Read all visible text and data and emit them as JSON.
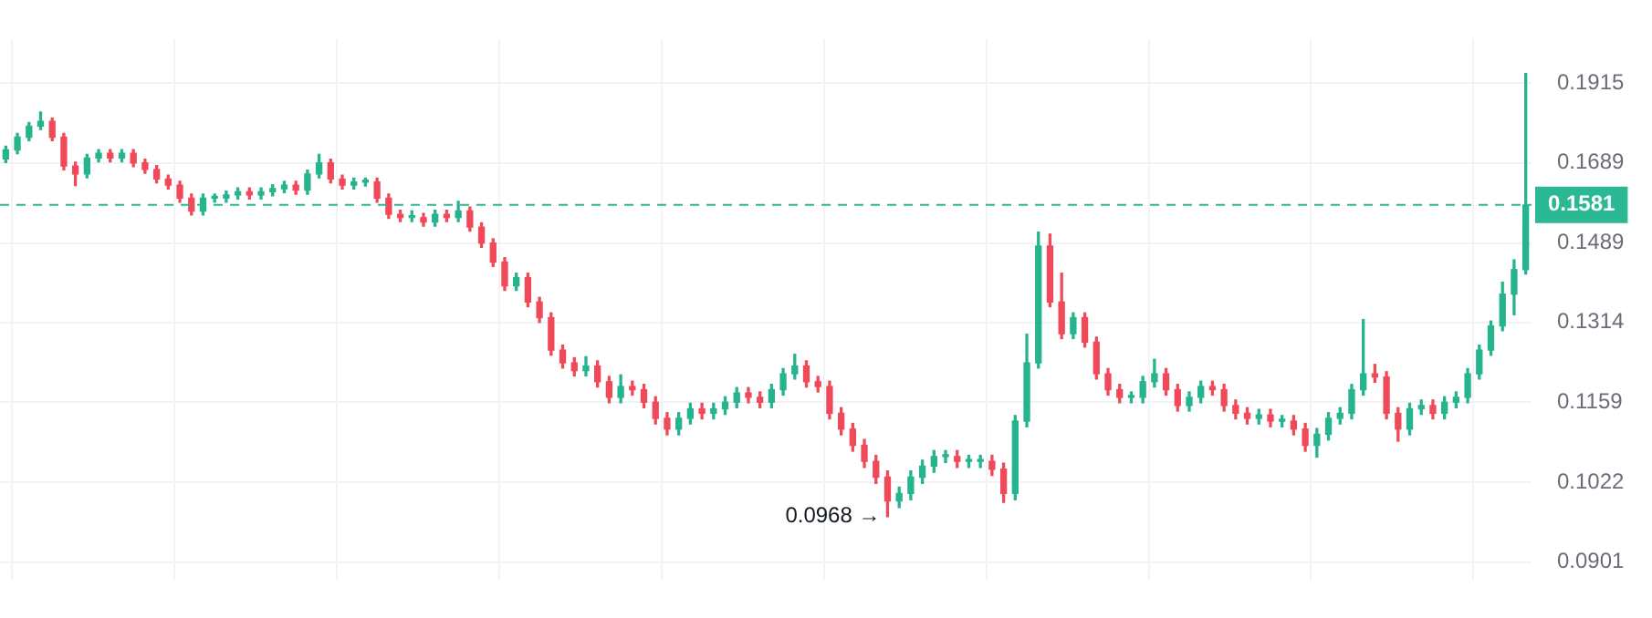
{
  "chart_data": {
    "type": "candlestick",
    "categories": [
      null,
      null,
      null,
      null,
      null,
      null,
      null,
      null,
      null,
      null,
      null,
      null,
      null,
      null,
      null,
      null,
      null,
      null,
      null,
      null,
      null,
      null,
      null,
      null,
      null,
      null,
      null,
      null,
      null,
      null,
      null,
      null,
      null,
      null,
      null,
      null,
      null,
      null,
      null,
      null,
      null,
      null,
      null,
      null,
      null,
      null,
      null,
      null,
      null,
      null,
      null,
      null,
      null,
      null,
      null,
      null,
      null,
      null,
      null,
      null,
      null,
      null,
      null,
      null,
      null,
      null,
      null,
      null,
      null,
      null,
      null,
      null,
      null,
      null,
      null,
      null,
      null,
      null,
      null,
      null,
      null,
      null,
      null,
      null,
      null,
      null,
      null,
      null,
      null,
      null,
      null,
      null,
      null,
      null,
      null,
      null,
      null,
      null,
      null,
      null,
      null,
      null,
      null,
      null,
      null,
      null,
      null,
      null,
      null,
      null,
      null,
      null,
      null,
      null,
      null,
      null,
      null,
      null,
      null,
      null,
      null,
      null,
      null,
      null,
      null,
      null,
      null,
      null,
      null,
      null,
      null,
      null
    ],
    "ohlc": [
      [
        0.17,
        0.1734,
        0.169,
        0.1724
      ],
      [
        0.1724,
        0.1769,
        0.1714,
        0.1759
      ],
      [
        0.1759,
        0.18,
        0.1749,
        0.179
      ],
      [
        0.179,
        0.183,
        0.178,
        0.1803
      ],
      [
        0.1803,
        0.1813,
        0.1749,
        0.1759
      ],
      [
        0.1759,
        0.1769,
        0.1671,
        0.1681
      ],
      [
        0.1681,
        0.1691,
        0.163,
        0.166
      ],
      [
        0.166,
        0.1712,
        0.165,
        0.1702
      ],
      [
        0.1702,
        0.1725,
        0.1692,
        0.1715
      ],
      [
        0.1715,
        0.1725,
        0.1692,
        0.1702
      ],
      [
        0.1702,
        0.1725,
        0.1692,
        0.1715
      ],
      [
        0.1715,
        0.1725,
        0.1679,
        0.1689
      ],
      [
        0.1689,
        0.1699,
        0.1662,
        0.1672
      ],
      [
        0.1672,
        0.1682,
        0.1637,
        0.1647
      ],
      [
        0.1647,
        0.1657,
        0.1621,
        0.1631
      ],
      [
        0.1631,
        0.1641,
        0.1588,
        0.1598
      ],
      [
        0.1598,
        0.1608,
        0.1556,
        0.1566
      ],
      [
        0.1566,
        0.1608,
        0.1556,
        0.1598
      ],
      [
        0.1598,
        0.1608,
        0.1588,
        0.1598
      ],
      [
        0.1598,
        0.1616,
        0.1588,
        0.1606
      ],
      [
        0.1606,
        0.1624,
        0.1596,
        0.1614
      ],
      [
        0.1614,
        0.1624,
        0.1596,
        0.1606
      ],
      [
        0.1606,
        0.1624,
        0.1596,
        0.1614
      ],
      [
        0.1614,
        0.1632,
        0.1604,
        0.1622
      ],
      [
        0.1622,
        0.1641,
        0.1612,
        0.1631
      ],
      [
        0.1631,
        0.1641,
        0.1608,
        0.1618
      ],
      [
        0.1618,
        0.167,
        0.1608,
        0.166
      ],
      [
        0.166,
        0.1712,
        0.165,
        0.1689
      ],
      [
        0.1689,
        0.1699,
        0.1637,
        0.1647
      ],
      [
        0.1647,
        0.1657,
        0.1621,
        0.1631
      ],
      [
        0.1631,
        0.1649,
        0.1621,
        0.1639
      ],
      [
        0.1639,
        0.1649,
        0.1629,
        0.1639
      ],
      [
        0.1639,
        0.1649,
        0.1588,
        0.1598
      ],
      [
        0.1598,
        0.1608,
        0.1548,
        0.1558
      ],
      [
        0.1558,
        0.1568,
        0.154,
        0.155
      ],
      [
        0.155,
        0.1566,
        0.154,
        0.155
      ],
      [
        0.155,
        0.156,
        0.1529,
        0.1539
      ],
      [
        0.1539,
        0.1568,
        0.1529,
        0.1558
      ],
      [
        0.1558,
        0.1568,
        0.154,
        0.155
      ],
      [
        0.155,
        0.159,
        0.154,
        0.1566
      ],
      [
        0.1566,
        0.1576,
        0.1517,
        0.1527
      ],
      [
        0.1527,
        0.1537,
        0.1479,
        0.1489
      ],
      [
        0.1489,
        0.1499,
        0.1435,
        0.1445
      ],
      [
        0.1445,
        0.1455,
        0.1382,
        0.1392
      ],
      [
        0.1392,
        0.142,
        0.1382,
        0.141
      ],
      [
        0.141,
        0.142,
        0.1347,
        0.1357
      ],
      [
        0.1357,
        0.1367,
        0.1314,
        0.1324
      ],
      [
        0.1324,
        0.1334,
        0.1248,
        0.1258
      ],
      [
        0.1258,
        0.1268,
        0.1223,
        0.1233
      ],
      [
        0.1233,
        0.1243,
        0.1208,
        0.1218
      ],
      [
        0.1218,
        0.1245,
        0.1208,
        0.1227
      ],
      [
        0.1227,
        0.1237,
        0.1187,
        0.1197
      ],
      [
        0.1197,
        0.1207,
        0.1158,
        0.1168
      ],
      [
        0.1168,
        0.121,
        0.1158,
        0.1188
      ],
      [
        0.1188,
        0.1198,
        0.1172,
        0.1182
      ],
      [
        0.1182,
        0.1192,
        0.1149,
        0.1159
      ],
      [
        0.1159,
        0.1169,
        0.112,
        0.113
      ],
      [
        0.113,
        0.114,
        0.1101,
        0.1111
      ],
      [
        0.1111,
        0.114,
        0.1101,
        0.113
      ],
      [
        0.113,
        0.1157,
        0.112,
        0.1147
      ],
      [
        0.1147,
        0.1157,
        0.1129,
        0.1139
      ],
      [
        0.1139,
        0.1157,
        0.1129,
        0.1147
      ],
      [
        0.1147,
        0.1169,
        0.1137,
        0.1159
      ],
      [
        0.1159,
        0.1186,
        0.1149,
        0.1176
      ],
      [
        0.1176,
        0.1186,
        0.1158,
        0.1168
      ],
      [
        0.1168,
        0.1178,
        0.1149,
        0.1159
      ],
      [
        0.1159,
        0.1192,
        0.1149,
        0.1182
      ],
      [
        0.1182,
        0.1222,
        0.1172,
        0.1212
      ],
      [
        0.1212,
        0.125,
        0.1202,
        0.1227
      ],
      [
        0.1227,
        0.1237,
        0.1187,
        0.1197
      ],
      [
        0.1197,
        0.1207,
        0.1178,
        0.1188
      ],
      [
        0.1188,
        0.1198,
        0.1129,
        0.1139
      ],
      [
        0.1139,
        0.1149,
        0.1101,
        0.1111
      ],
      [
        0.1111,
        0.1121,
        0.1073,
        0.1083
      ],
      [
        0.1083,
        0.1093,
        0.1046,
        0.1056
      ],
      [
        0.1056,
        0.1066,
        0.102,
        0.103
      ],
      [
        0.103,
        0.104,
        0.0968,
        0.0992
      ],
      [
        0.0992,
        0.1014,
        0.0982,
        0.1004
      ],
      [
        0.1004,
        0.104,
        0.0994,
        0.103
      ],
      [
        0.103,
        0.1058,
        0.102,
        0.1048
      ],
      [
        0.1048,
        0.1074,
        0.1038,
        0.1064
      ],
      [
        0.1064,
        0.1074,
        0.1054,
        0.1064
      ],
      [
        0.1064,
        0.1074,
        0.1046,
        0.1056
      ],
      [
        0.1056,
        0.1066,
        0.1046,
        0.1056
      ],
      [
        0.1056,
        0.1066,
        0.1046,
        0.1056
      ],
      [
        0.1056,
        0.1066,
        0.1033,
        0.1043
      ],
      [
        0.1043,
        0.1053,
        0.099,
        0.1004
      ],
      [
        0.1004,
        0.1135,
        0.0994,
        0.1125
      ],
      [
        0.1125,
        0.129,
        0.1115,
        0.1233
      ],
      [
        0.1233,
        0.1515,
        0.1223,
        0.1482
      ],
      [
        0.1482,
        0.151,
        0.1347,
        0.1357
      ],
      [
        0.1357,
        0.142,
        0.1281,
        0.1291
      ],
      [
        0.1291,
        0.1334,
        0.1281,
        0.1324
      ],
      [
        0.1324,
        0.1334,
        0.1264,
        0.1274
      ],
      [
        0.1274,
        0.1284,
        0.1202,
        0.1212
      ],
      [
        0.1212,
        0.1222,
        0.1172,
        0.1182
      ],
      [
        0.1182,
        0.1192,
        0.1158,
        0.1168
      ],
      [
        0.1168,
        0.1178,
        0.1158,
        0.1168
      ],
      [
        0.1168,
        0.1207,
        0.1158,
        0.1197
      ],
      [
        0.1197,
        0.124,
        0.1187,
        0.1212
      ],
      [
        0.1212,
        0.1222,
        0.1172,
        0.1182
      ],
      [
        0.1182,
        0.1192,
        0.1143,
        0.1153
      ],
      [
        0.1153,
        0.1178,
        0.1143,
        0.1168
      ],
      [
        0.1168,
        0.1198,
        0.1158,
        0.1188
      ],
      [
        0.1188,
        0.1198,
        0.1172,
        0.1182
      ],
      [
        0.1182,
        0.1192,
        0.1143,
        0.1153
      ],
      [
        0.1153,
        0.1163,
        0.1129,
        0.1139
      ],
      [
        0.1139,
        0.1149,
        0.112,
        0.113
      ],
      [
        0.113,
        0.1146,
        0.112,
        0.1136
      ],
      [
        0.1136,
        0.1146,
        0.1115,
        0.1125
      ],
      [
        0.1125,
        0.1135,
        0.1115,
        0.1125
      ],
      [
        0.1125,
        0.1135,
        0.1101,
        0.1111
      ],
      [
        0.1111,
        0.1121,
        0.1073,
        0.1083
      ],
      [
        0.1083,
        0.1112,
        0.1063,
        0.1102
      ],
      [
        0.1102,
        0.114,
        0.1092,
        0.113
      ],
      [
        0.113,
        0.1149,
        0.112,
        0.1139
      ],
      [
        0.1139,
        0.1192,
        0.1129,
        0.1182
      ],
      [
        0.1182,
        0.132,
        0.1172,
        0.1212
      ],
      [
        0.1212,
        0.123,
        0.1196,
        0.1206
      ],
      [
        0.1206,
        0.1216,
        0.1129,
        0.1139
      ],
      [
        0.1139,
        0.1149,
        0.109,
        0.1111
      ],
      [
        0.1111,
        0.1157,
        0.1101,
        0.1147
      ],
      [
        0.1147,
        0.1163,
        0.1137,
        0.1153
      ],
      [
        0.1153,
        0.1163,
        0.1129,
        0.1139
      ],
      [
        0.1139,
        0.1169,
        0.1129,
        0.1159
      ],
      [
        0.1159,
        0.1178,
        0.1149,
        0.1168
      ],
      [
        0.1168,
        0.1222,
        0.1158,
        0.1212
      ],
      [
        0.1212,
        0.1268,
        0.1202,
        0.1258
      ],
      [
        0.1258,
        0.1317,
        0.1248,
        0.1307
      ],
      [
        0.1307,
        0.14,
        0.1297,
        0.1374
      ],
      [
        0.1374,
        0.145,
        0.133,
        0.1428
      ],
      [
        0.1428,
        0.1944,
        0.1418,
        0.1581
      ]
    ],
    "log": true,
    "ylim": [
      0.0877,
      0.2054
    ],
    "yticks": [
      0.0901,
      0.1022,
      0.1159,
      0.1314,
      0.1489,
      0.1689,
      0.1915
    ],
    "grid": true,
    "tick_labels": "y",
    "ref_lines": [
      {
        "axis": "y",
        "value": 0.1581,
        "label": "0.1581",
        "color": "#2bb894",
        "line_style": "dashed"
      }
    ],
    "annotations": [
      "0.0968 →"
    ]
  }
}
